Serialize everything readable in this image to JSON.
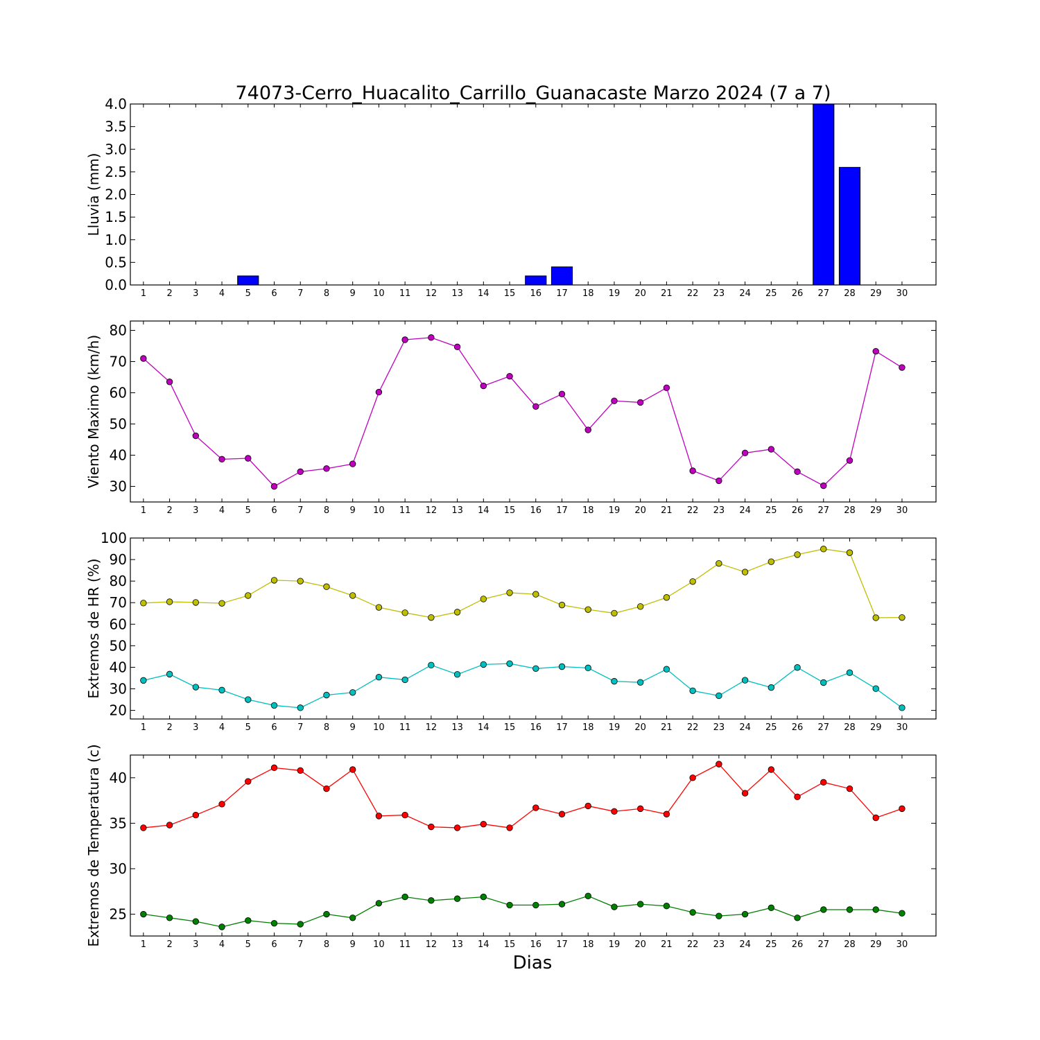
{
  "title": "74073-Cerro_Huacalito_Carrillo_Guanacaste Marzo 2024  (7 a 7)",
  "xlabel": "Dias",
  "colors": {
    "rain": "#0000ff",
    "wind": "#bf00bf",
    "hr_max": "#bfbf00",
    "hr_min": "#00bfbf",
    "temp_max": "#ff0000",
    "temp_min": "#008000"
  },
  "chart_data": [
    {
      "type": "bar",
      "ylabel": "Lluvia (mm)",
      "ylim": [
        0,
        4.0
      ],
      "yticks": [
        "0.0",
        "0.5",
        "1.0",
        "1.5",
        "2.0",
        "2.5",
        "3.0",
        "3.5",
        "4.0"
      ],
      "x": [
        1,
        2,
        3,
        4,
        5,
        6,
        7,
        8,
        9,
        10,
        11,
        12,
        13,
        14,
        15,
        16,
        17,
        18,
        19,
        20,
        21,
        22,
        23,
        24,
        25,
        26,
        27,
        28,
        29,
        30
      ],
      "series": [
        {
          "color_key": "rain",
          "values": [
            0,
            0,
            0,
            0,
            0.2,
            0,
            0,
            0,
            0,
            0,
            0,
            0,
            0,
            0,
            0,
            0.2,
            0.4,
            0,
            0,
            0,
            0,
            0,
            0,
            0,
            0,
            0,
            4.0,
            2.6,
            0,
            0
          ]
        }
      ]
    },
    {
      "type": "line",
      "ylabel": "Viento Maximo (km/h)",
      "ylim": [
        25,
        83
      ],
      "yticks": [
        "30",
        "40",
        "50",
        "60",
        "70",
        "80"
      ],
      "x": [
        1,
        2,
        3,
        4,
        5,
        6,
        7,
        8,
        9,
        10,
        11,
        12,
        13,
        14,
        15,
        16,
        17,
        18,
        19,
        20,
        21,
        22,
        23,
        24,
        25,
        26,
        27,
        28,
        29,
        30
      ],
      "series": [
        {
          "color_key": "wind",
          "values": [
            71.0,
            63.5,
            46.2,
            38.7,
            39.0,
            30.0,
            34.7,
            35.7,
            37.2,
            60.2,
            77.0,
            77.7,
            74.7,
            62.2,
            65.3,
            55.6,
            59.6,
            48.1,
            57.4,
            56.9,
            61.6,
            35.0,
            31.8,
            40.7,
            41.9,
            34.7,
            30.2,
            38.3,
            73.3,
            68.1
          ]
        }
      ]
    },
    {
      "type": "line",
      "ylabel": "Extremos de HR (%)",
      "ylim": [
        16,
        100
      ],
      "yticks": [
        "20",
        "30",
        "40",
        "50",
        "60",
        "70",
        "80",
        "90",
        "100"
      ],
      "x": [
        1,
        2,
        3,
        4,
        5,
        6,
        7,
        8,
        9,
        10,
        11,
        12,
        13,
        14,
        15,
        16,
        17,
        18,
        19,
        20,
        21,
        22,
        23,
        24,
        25,
        26,
        27,
        28,
        29,
        30
      ],
      "series": [
        {
          "color_key": "hr_max",
          "values": [
            69.8,
            70.4,
            70.1,
            69.7,
            73.3,
            80.4,
            80.0,
            77.4,
            73.3,
            67.8,
            65.3,
            63.1,
            65.6,
            71.7,
            74.6,
            73.9,
            68.9,
            66.8,
            65.1,
            68.2,
            72.4,
            79.8,
            88.2,
            84.2,
            89.0,
            92.3,
            94.9,
            93.2,
            63.0,
            63.1
          ]
        },
        {
          "color_key": "hr_min",
          "values": [
            33.9,
            36.8,
            30.8,
            29.4,
            25.0,
            22.3,
            21.2,
            27.1,
            28.3,
            35.4,
            34.2,
            41.0,
            36.7,
            41.3,
            41.7,
            39.4,
            40.3,
            39.7,
            33.5,
            33.0,
            39.1,
            29.1,
            26.8,
            34.0,
            30.6,
            39.9,
            32.9,
            37.5,
            30.1,
            21.2
          ]
        }
      ]
    },
    {
      "type": "line",
      "ylabel": "Extremos de Temperatura (c)",
      "ylim": [
        22.6,
        42.5
      ],
      "yticks": [
        "25",
        "30",
        "35",
        "40"
      ],
      "x": [
        1,
        2,
        3,
        4,
        5,
        6,
        7,
        8,
        9,
        10,
        11,
        12,
        13,
        14,
        15,
        16,
        17,
        18,
        19,
        20,
        21,
        22,
        23,
        24,
        25,
        26,
        27,
        28,
        29,
        30
      ],
      "series": [
        {
          "color_key": "temp_max",
          "values": [
            34.5,
            34.8,
            35.9,
            37.1,
            39.6,
            41.1,
            40.8,
            38.8,
            40.9,
            35.8,
            35.9,
            34.6,
            34.5,
            34.9,
            34.5,
            36.7,
            36.0,
            36.9,
            36.3,
            36.6,
            36.0,
            40.0,
            41.5,
            38.3,
            40.9,
            37.9,
            39.5,
            38.8,
            35.6,
            36.6
          ]
        },
        {
          "color_key": "temp_min",
          "values": [
            25.0,
            24.6,
            24.2,
            23.6,
            24.3,
            24.0,
            23.9,
            25.0,
            24.6,
            26.2,
            26.9,
            26.5,
            26.7,
            26.9,
            26.0,
            26.0,
            26.1,
            27.0,
            25.8,
            26.1,
            25.9,
            25.2,
            24.8,
            25.0,
            25.7,
            24.6,
            25.5,
            25.5,
            25.5,
            25.1
          ]
        }
      ]
    }
  ]
}
